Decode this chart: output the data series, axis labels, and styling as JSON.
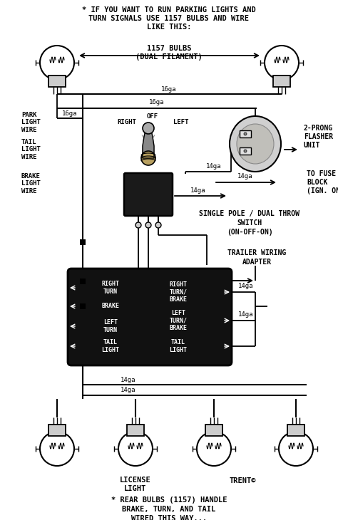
{
  "bg_color": "#ffffff",
  "lc": "#000000",
  "top_line1": "* IF YOU WANT TO RUN PARKING LIGHTS AND",
  "top_line2": "TURN SIGNALS USE 1157 BULBS AND WIRE",
  "top_line3": "LIKE THIS:",
  "bulbs_label_line1": "1157 BULBS",
  "bulbs_label_line2": "(DUAL FILAMENT)",
  "wire_16ga": "16ga",
  "wire_14ga": "14ga",
  "park_label": "PARK\nLIGHT\nWIRE",
  "tail_label": "TAIL\nLIGHT\nWIRE",
  "brake_label": "BRAKE\nLIGHT\nWIRE",
  "sw_right": "RIGHT",
  "sw_off": "OFF",
  "sw_left": "LEFT",
  "sw_body": "ON-OFF-ON",
  "flasher_label": "2-PRONG\nFLASHER\nUNIT",
  "fuse_label": "TO FUSE\nBLOCK\n(IGN. ON)",
  "switch_desc_line1": "SINGLE POLE / DUAL THROW",
  "switch_desc_line2": "SWITCH",
  "switch_desc_line3": "(ON-OFF-ON)",
  "trailer_label_line1": "TRAILER WIRING",
  "trailer_label_line2": "ADAPTER",
  "adp_left": [
    "RIGHT\nTURN",
    "BRAKE",
    "LEFT\nTURN",
    "TAIL\nLIGHT"
  ],
  "adp_right": [
    "RIGHT\nTURN/\nBRAKE",
    "LEFT\nTURN/\nBRAKE",
    "TAIL\nLIGHT"
  ],
  "license_label": "LICENSE\nLIGHT",
  "copyright": "TRENT©",
  "bottom_line1": "* REAR BULBS (1157) HANDLE",
  "bottom_line2": "BRAKE, TURN, AND TAIL",
  "bottom_line3": "WIRED THIS WAY..."
}
